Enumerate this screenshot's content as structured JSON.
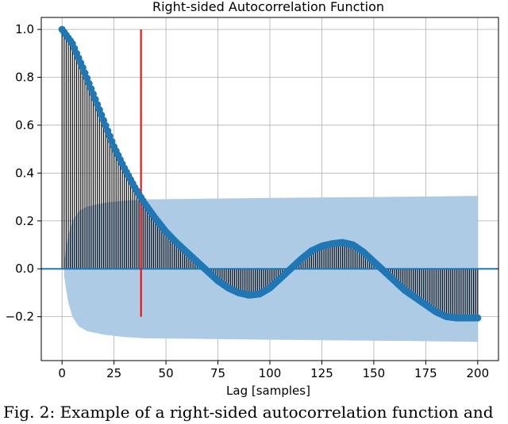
{
  "chart_data": {
    "type": "line",
    "title": "Right-sided Autocorrelation Function",
    "xlabel": "Lag [samples]",
    "ylabel": "",
    "xlim": [
      -10,
      210
    ],
    "ylim": [
      -0.3833,
      1.05
    ],
    "x_ticks": [
      0,
      25,
      50,
      75,
      100,
      125,
      150,
      175,
      200
    ],
    "y_ticks": [
      1.0,
      0.8,
      0.6,
      0.4,
      0.2,
      0.0,
      -0.2
    ],
    "y_tick_labels": [
      "1.0",
      "0.8",
      "0.6",
      "0.4",
      "0.2",
      "0.0",
      "−0.2"
    ],
    "grid": true,
    "series": [
      {
        "kind": "stem",
        "x": [
          0,
          5,
          10,
          15,
          20,
          25,
          30,
          35,
          40,
          45,
          50,
          55,
          60,
          65,
          70,
          75,
          80,
          85,
          90,
          95,
          100,
          105,
          110,
          115,
          120,
          125,
          130,
          135,
          140,
          145,
          150,
          155,
          160,
          165,
          170,
          175,
          180,
          185,
          190,
          195,
          200
        ],
        "y": [
          1.0,
          0.94,
          0.84,
          0.73,
          0.62,
          0.51,
          0.42,
          0.34,
          0.27,
          0.21,
          0.155,
          0.11,
          0.07,
          0.03,
          -0.01,
          -0.05,
          -0.08,
          -0.1,
          -0.11,
          -0.105,
          -0.08,
          -0.04,
          0.0,
          0.04,
          0.075,
          0.095,
          0.105,
          0.11,
          0.1,
          0.07,
          0.03,
          -0.01,
          -0.05,
          -0.09,
          -0.12,
          -0.15,
          -0.18,
          -0.2,
          -0.205,
          -0.205,
          -0.205
        ],
        "color": "#1f77b4",
        "stem_color": "#000000"
      }
    ],
    "confidence_band": {
      "x": [
        1,
        2,
        3,
        5,
        8,
        12,
        20,
        30,
        40,
        60,
        80,
        100,
        125,
        150,
        175,
        200
      ],
      "upper": [
        0.03,
        0.09,
        0.14,
        0.2,
        0.24,
        0.26,
        0.275,
        0.285,
        0.29,
        0.292,
        0.294,
        0.296,
        0.298,
        0.3,
        0.302,
        0.305
      ],
      "lower": [
        -0.03,
        -0.09,
        -0.14,
        -0.2,
        -0.24,
        -0.26,
        -0.275,
        -0.285,
        -0.29,
        -0.292,
        -0.294,
        -0.296,
        -0.298,
        -0.3,
        -0.302,
        -0.305
      ],
      "color": "#aecbe6"
    },
    "vertical_marker": {
      "x": 38,
      "y_range": [
        -0.2,
        1.0
      ],
      "color": "#ff0000"
    },
    "zero_line_color": "#1f77b4"
  },
  "caption": "Fig. 2: Example of a right-sided autocorrelation function and"
}
